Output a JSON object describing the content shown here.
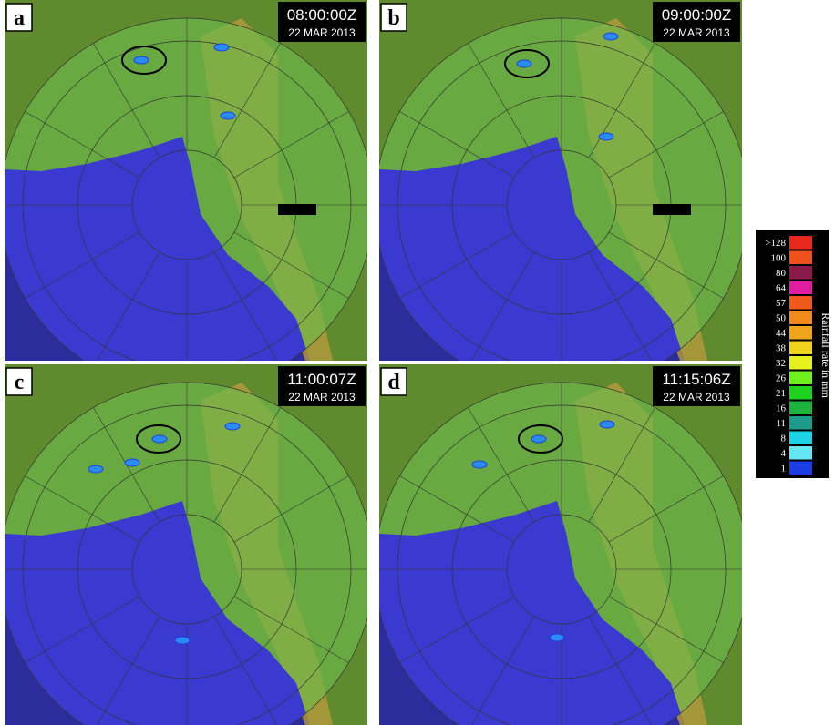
{
  "panels": [
    {
      "label": "a",
      "time": "08:00:00Z",
      "date": "22 MAR 2013"
    },
    {
      "label": "b",
      "time": "09:00:00Z",
      "date": "22 MAR 2013"
    },
    {
      "label": "c",
      "time": "11:00:07Z",
      "date": "22 MAR 2013"
    },
    {
      "label": "d",
      "time": "11:15:06Z",
      "date": "22 MAR 2013"
    }
  ],
  "legend": {
    "title": "Rainfall  rate in mm",
    "levels": [
      {
        "label": ">128",
        "color": "#e8281c"
      },
      {
        "label": "100",
        "color": "#f0501c"
      },
      {
        "label": "80",
        "color": "#8a1a4a"
      },
      {
        "label": "64",
        "color": "#e01ca0"
      },
      {
        "label": "57",
        "color": "#f0581c"
      },
      {
        "label": "50",
        "color": "#f08a1c"
      },
      {
        "label": "44",
        "color": "#f0a41c"
      },
      {
        "label": "38",
        "color": "#f0d21c"
      },
      {
        "label": "32",
        "color": "#e6f01c"
      },
      {
        "label": "26",
        "color": "#6ef01c"
      },
      {
        "label": "21",
        "color": "#1cd21c"
      },
      {
        "label": "16",
        "color": "#1cb43c"
      },
      {
        "label": "11",
        "color": "#1c9a8a"
      },
      {
        "label": "8",
        "color": "#1cd2e6"
      },
      {
        "label": "4",
        "color": "#64e6f0"
      },
      {
        "label": "1",
        "color": "#1c3ce6"
      }
    ]
  }
}
